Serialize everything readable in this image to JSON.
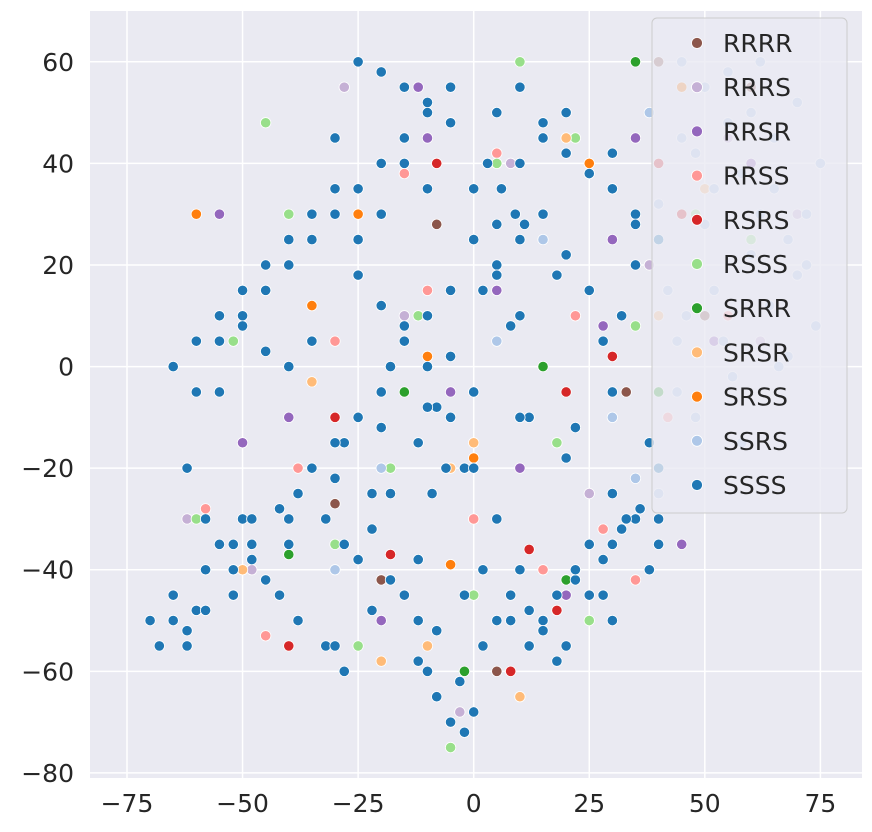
{
  "chart_data": {
    "type": "scatter",
    "title": "",
    "xlabel": "",
    "ylabel": "",
    "xlim": [
      -83,
      84
    ],
    "ylim": [
      -81,
      70
    ],
    "xticks": [
      -75,
      -50,
      -25,
      0,
      25,
      50,
      75
    ],
    "yticks": [
      -80,
      -60,
      -40,
      -20,
      0,
      20,
      40,
      60
    ],
    "xtick_labels": [
      "−75",
      "−50",
      "−25",
      "0",
      "25",
      "50",
      "75"
    ],
    "ytick_labels": [
      "−80",
      "−60",
      "−40",
      "−20",
      "0",
      "20",
      "40",
      "60"
    ],
    "grid": true,
    "legend_position": "top-right",
    "background_color": "#eaeaf2",
    "series": [
      {
        "name": "RRRR",
        "color": "#8c564b",
        "x": [
          -45,
          15,
          40,
          50,
          -20,
          5,
          60,
          -30,
          33,
          -8
        ],
        "y": [
          15,
          45,
          60,
          10,
          -42,
          -60,
          55,
          -27,
          -5,
          28
        ]
      },
      {
        "name": "RRRS",
        "color": "#c5b0d5",
        "x": [
          -62,
          -28,
          8,
          38,
          55,
          70,
          -48,
          12,
          -15,
          62,
          25,
          -3
        ],
        "y": [
          -30,
          55,
          40,
          20,
          45,
          30,
          -40,
          -55,
          10,
          5,
          -25,
          -68
        ]
      },
      {
        "name": "RRSR",
        "color": "#9467bd",
        "x": [
          -55,
          -35,
          -10,
          10,
          30,
          45,
          -20,
          5,
          -40,
          20,
          52,
          -12,
          0,
          35,
          -25,
          15,
          -50,
          28,
          60,
          -5
        ],
        "y": [
          30,
          5,
          45,
          -20,
          25,
          -35,
          -50,
          15,
          -10,
          -45,
          5,
          55,
          -30,
          45,
          18,
          30,
          -15,
          8,
          40,
          -5
        ]
      },
      {
        "name": "RRSS",
        "color": "#ff9896",
        "x": [
          -58,
          -38,
          -15,
          5,
          22,
          42,
          60,
          -30,
          0,
          15,
          -45,
          35,
          55,
          -10,
          28,
          -60
        ],
        "y": [
          -28,
          -20,
          38,
          42,
          10,
          -10,
          25,
          5,
          -30,
          -40,
          -53,
          -42,
          10,
          15,
          -32,
          -48
        ]
      },
      {
        "name": "RSRS",
        "color": "#d62728",
        "x": [
          -65,
          -40,
          -30,
          -18,
          8,
          20,
          30,
          40,
          12,
          -8,
          45,
          18
        ],
        "y": [
          0,
          -55,
          -10,
          -37,
          -60,
          -5,
          2,
          40,
          -36,
          40,
          30,
          -48
        ]
      },
      {
        "name": "RSSS",
        "color": "#98df8a",
        "x": [
          -60,
          -40,
          -25,
          -12,
          5,
          18,
          30,
          40,
          -52,
          -5,
          25,
          48,
          -30,
          10,
          -18,
          35,
          60,
          -45,
          0,
          22
        ],
        "y": [
          -30,
          30,
          -55,
          10,
          40,
          -15,
          35,
          -25,
          5,
          -75,
          -50,
          30,
          -35,
          60,
          -20,
          8,
          25,
          48,
          -45,
          45
        ]
      },
      {
        "name": "SRRR",
        "color": "#2ca02c",
        "x": [
          -15,
          20,
          40,
          -2,
          15,
          -40,
          35
        ],
        "y": [
          -5,
          -42,
          -5,
          -60,
          0,
          -37,
          60
        ]
      },
      {
        "name": "SRSR",
        "color": "#ffbb78",
        "x": [
          -50,
          -25,
          0,
          20,
          40,
          -10,
          10,
          30,
          -35,
          -5,
          50,
          -20
        ],
        "y": [
          -40,
          25,
          -15,
          45,
          10,
          -55,
          -65,
          -35,
          -3,
          -20,
          35,
          -58
        ]
      },
      {
        "name": "SRSS",
        "color": "#ff7f0e",
        "x": [
          -60,
          -35,
          -10,
          0,
          25,
          45,
          -5,
          15,
          -25
        ],
        "y": [
          30,
          12,
          2,
          -18,
          40,
          55,
          -39,
          -50,
          30
        ]
      },
      {
        "name": "SSRS",
        "color": "#aec7e8",
        "x": [
          45,
          50,
          55,
          60,
          65,
          70,
          75,
          48,
          52,
          58,
          62,
          68,
          72,
          42,
          46,
          54,
          66,
          74,
          44,
          56,
          64,
          70,
          50,
          60,
          40,
          48,
          58,
          68,
          45,
          55,
          65,
          62,
          52,
          72,
          38,
          44,
          -20,
          5,
          -30,
          15,
          30,
          40,
          35
        ],
        "y": [
          60,
          55,
          58,
          50,
          45,
          52,
          40,
          42,
          35,
          38,
          30,
          25,
          20,
          15,
          10,
          5,
          0,
          8,
          -5,
          -2,
          12,
          18,
          28,
          22,
          32,
          -10,
          -15,
          2,
          45,
          48,
          35,
          60,
          15,
          30,
          50,
          5,
          -20,
          5,
          -40,
          25,
          -10,
          -25,
          -22
        ]
      },
      {
        "name": "SSSS",
        "color": "#1f77b4",
        "x": [
          -70,
          -68,
          -65,
          -62,
          -60,
          -58,
          -55,
          -52,
          -50,
          -48,
          -45,
          -42,
          -40,
          -38,
          -35,
          -32,
          -30,
          -28,
          -25,
          -22,
          -20,
          -18,
          -15,
          -12,
          -10,
          -8,
          -5,
          -2,
          0,
          2,
          5,
          8,
          10,
          12,
          15,
          18,
          20,
          22,
          25,
          28,
          30,
          32,
          35,
          38,
          40,
          -65,
          -60,
          -55,
          -50,
          -45,
          -40,
          -35,
          -30,
          -25,
          -20,
          -15,
          -10,
          -5,
          0,
          5,
          10,
          15,
          20,
          25,
          30,
          35,
          40,
          -62,
          -58,
          -52,
          -48,
          -42,
          -38,
          -32,
          -28,
          -22,
          -18,
          -12,
          -8,
          -2,
          2,
          8,
          12,
          18,
          22,
          28,
          32,
          38,
          -20,
          -15,
          -10,
          -5,
          -25,
          -30,
          5,
          10,
          15,
          20,
          25,
          30,
          35,
          -15,
          -10,
          -20,
          -25,
          0,
          5,
          -5,
          10,
          -35,
          -40,
          -45,
          -50,
          -55,
          -30,
          -20,
          -10,
          0,
          10,
          20,
          30,
          40,
          -60,
          -55,
          -50,
          -45,
          -40,
          -35,
          -30,
          -25,
          -20,
          -15,
          -10,
          -5,
          0,
          5,
          10,
          15,
          20,
          25,
          30,
          35,
          40,
          -8,
          -5,
          -2,
          -10,
          -12,
          -3,
          0,
          2,
          5,
          8,
          15,
          12,
          18,
          22,
          25,
          28,
          30,
          33,
          36,
          -18,
          -15,
          -12,
          -30,
          -28,
          -25,
          -22,
          -40,
          -38,
          -42,
          -48,
          -52,
          -58,
          -62,
          -65,
          3,
          6,
          9,
          11,
          -6,
          -9
        ],
        "y": [
          -50,
          -55,
          -45,
          -52,
          -48,
          -40,
          -35,
          -45,
          -30,
          -38,
          -42,
          -28,
          -35,
          -25,
          -20,
          -30,
          -22,
          -15,
          -10,
          -25,
          -5,
          0,
          5,
          -15,
          10,
          -8,
          2,
          -20,
          -5,
          15,
          20,
          8,
          25,
          -10,
          30,
          18,
          22,
          -12,
          15,
          5,
          -5,
          10,
          20,
          -15,
          -20,
          0,
          -5,
          5,
          10,
          15,
          20,
          25,
          30,
          35,
          40,
          45,
          50,
          55,
          35,
          28,
          40,
          45,
          50,
          38,
          42,
          30,
          25,
          -20,
          -30,
          -40,
          -35,
          -45,
          -50,
          -55,
          -60,
          -48,
          -42,
          -38,
          -52,
          -45,
          -40,
          -50,
          -55,
          -45,
          -42,
          -38,
          -32,
          -40,
          58,
          55,
          52,
          48,
          60,
          45,
          50,
          55,
          48,
          42,
          38,
          35,
          28,
          40,
          35,
          30,
          25,
          25,
          18,
          15,
          10,
          5,
          0,
          3,
          8,
          -5,
          -15,
          -12,
          -8,
          -5,
          -10,
          -18,
          -25,
          -30,
          5,
          10,
          15,
          20,
          25,
          30,
          35,
          18,
          12,
          8,
          0,
          -10,
          -20,
          -30,
          -40,
          -50,
          -55,
          -45,
          -35,
          -30,
          -35,
          -65,
          -70,
          -72,
          -60,
          -58,
          -62,
          -68,
          -55,
          -50,
          -45,
          -52,
          -48,
          -58,
          -40,
          -35,
          -45,
          -50,
          -30,
          -28,
          -25,
          -45,
          -50,
          -55,
          -35,
          -38,
          -32,
          -30,
          -25,
          -28,
          -30,
          -35,
          -48,
          -55,
          -50,
          40,
          35,
          30,
          28,
          -20,
          -25
        ]
      }
    ]
  }
}
